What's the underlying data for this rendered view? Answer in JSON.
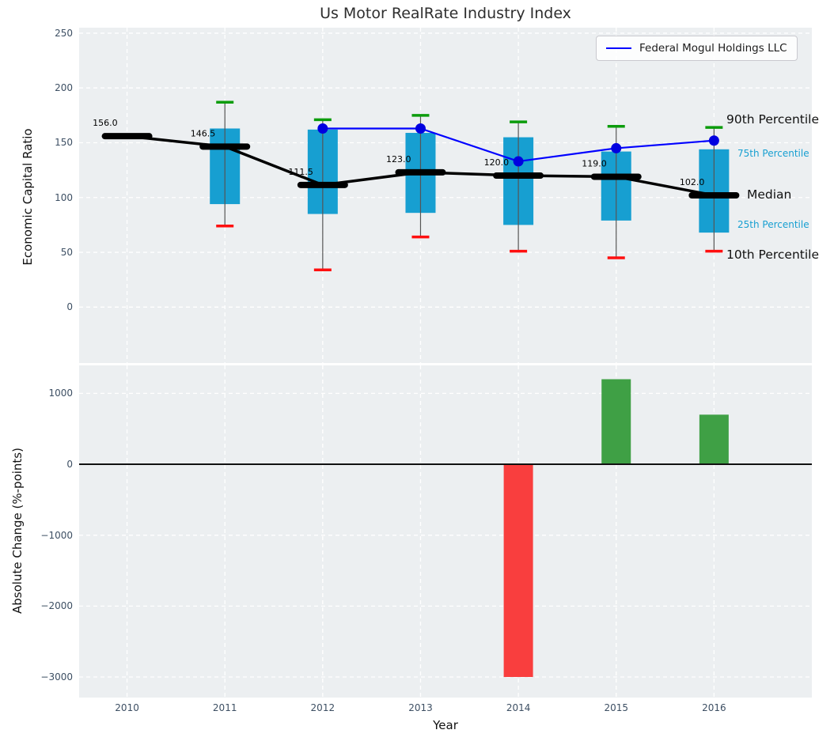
{
  "figure": {
    "title": "Us Motor RealRate Industry Index",
    "background": "#ffffff",
    "axes_background": "#eceff1"
  },
  "legend": {
    "label": "Federal Mogul Holdings LLC",
    "line_color": "#0000ff",
    "position": "upper right"
  },
  "annotations": {
    "p90": "90th Percentile",
    "p75": "75th Percentile",
    "median": "Median",
    "p25": "25th Percentile",
    "p10": "10th Percentile"
  },
  "colors": {
    "box_fill": "#179fd1",
    "whisker": "#555555",
    "cap_high": "#0c9c0c",
    "cap_low": "#ff0f0f",
    "median_line": "#000000",
    "company_line": "#0000ff",
    "company_marker": "#0000e0",
    "bar_positive": "#3fa045",
    "bar_negative": "#f93e3e",
    "grid": "#ffffff",
    "tick_text": "#3d4f63",
    "zero_line": "#111111"
  },
  "chart_data": [
    {
      "type": "box",
      "title": "Us Motor RealRate Industry Index",
      "ylabel": "Economic Capital Ratio",
      "x": [
        2010,
        2011,
        2012,
        2013,
        2014,
        2015,
        2016
      ],
      "xlim": [
        2009.51,
        2017.0
      ],
      "ylim": [
        -51,
        255
      ],
      "yticks": [
        0,
        50,
        100,
        150,
        200,
        250
      ],
      "ytick_labels": [
        "0",
        "50",
        "100",
        "150",
        "200",
        "250"
      ],
      "grid": true,
      "boxes": {
        "p90": [
          null,
          187,
          171,
          175,
          169,
          165,
          164
        ],
        "p75": [
          null,
          163,
          162,
          159,
          155,
          142,
          144
        ],
        "median": [
          156.0,
          146.5,
          111.5,
          123.0,
          120.0,
          119.0,
          102.0
        ],
        "p25": [
          null,
          94,
          85,
          86,
          75,
          79,
          68
        ],
        "p10": [
          null,
          74,
          34,
          64,
          51,
          45,
          51
        ]
      },
      "median_labels": [
        "156.0",
        "146.5",
        "111.5",
        "123.0",
        "120.0",
        "119.0",
        "102.0"
      ],
      "series": [
        {
          "name": "Federal Mogul Holdings LLC",
          "x": [
            2012,
            2013,
            2014,
            2015,
            2016
          ],
          "y": [
            163,
            163,
            133,
            145,
            152
          ]
        }
      ]
    },
    {
      "type": "bar",
      "ylabel": "Absolute Change (%-points)",
      "xlabel": "Year",
      "x": [
        2010,
        2011,
        2012,
        2013,
        2014,
        2015,
        2016
      ],
      "xtick_labels": [
        "2010",
        "2011",
        "2012",
        "2013",
        "2014",
        "2015",
        "2016"
      ],
      "values": [
        null,
        null,
        null,
        null,
        -3000,
        1200,
        700
      ],
      "xlim": [
        2009.51,
        2017.0
      ],
      "ylim": [
        -3290,
        1395
      ],
      "yticks": [
        1000,
        0,
        -1000,
        -2000,
        -3000
      ],
      "ytick_labels": [
        "1000",
        "0",
        "−1000",
        "−2000",
        "−3000"
      ],
      "grid": true,
      "zero_line": true
    }
  ]
}
